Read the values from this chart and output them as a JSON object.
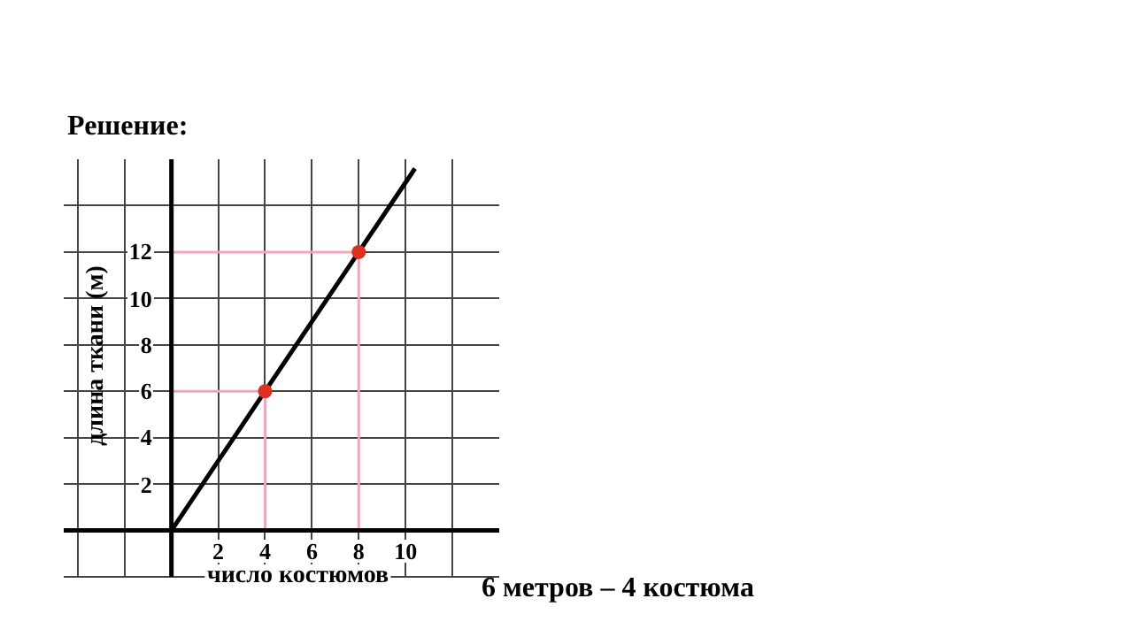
{
  "chart_data": {
    "type": "line",
    "title": "Решение:",
    "xlabel": "число костюмов",
    "ylabel": "длина ткани (м)",
    "annotations": [
      "6 метров – 4 костюма"
    ],
    "xlim": [
      -4.6,
      14
    ],
    "ylim": [
      -2,
      16
    ],
    "xticks": [
      {
        "value": -4,
        "label": null
      },
      {
        "value": -2,
        "label": null
      },
      2,
      4,
      6,
      8,
      10,
      {
        "value": 12,
        "label": null
      }
    ],
    "yticks": [
      {
        "value": -2,
        "label": null
      },
      2,
      4,
      6,
      8,
      10,
      12,
      {
        "value": 14,
        "label": null
      }
    ],
    "grid": true,
    "legend": false,
    "line_style": "solid",
    "series": [
      {
        "color": "#f4a6b8",
        "marker": "none",
        "x": [
          0,
          4,
          4
        ],
        "values": [
          6,
          6,
          0
        ]
      },
      {
        "color": "#f4a6b8",
        "marker": "none",
        "x": [
          0,
          8,
          8
        ],
        "values": [
          12,
          12,
          0
        ]
      },
      {
        "color": "#000000",
        "marker": "none",
        "x": [
          0,
          4,
          8,
          10.4
        ],
        "values": [
          0,
          6,
          12,
          15.6
        ]
      },
      {
        "type": "scatter",
        "color": "#e03020",
        "marker": "circle",
        "x": [
          4,
          8
        ],
        "values": [
          6,
          12
        ]
      }
    ]
  }
}
